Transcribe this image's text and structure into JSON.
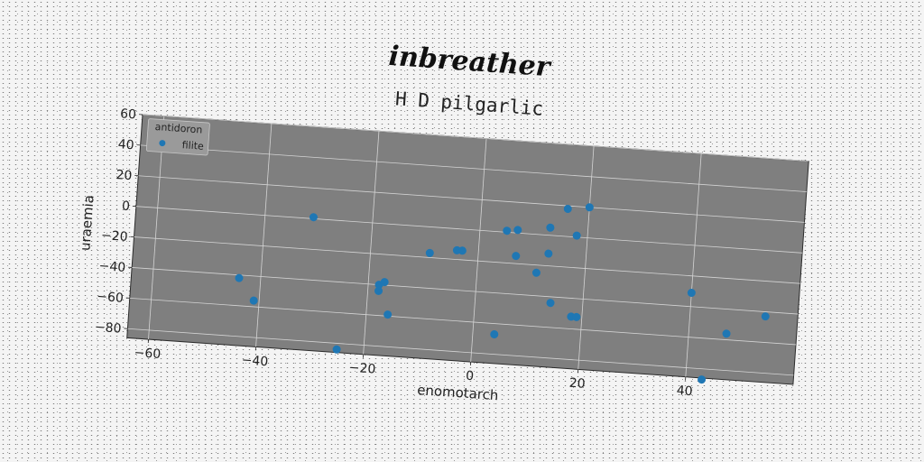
{
  "suptitle": "inbreather",
  "chart_data": {
    "type": "scatter",
    "title": "H D pilgarlic",
    "xlabel": "enomotarch",
    "ylabel": "uraemia",
    "xlim": [
      -64,
      60
    ],
    "ylim": [
      -86,
      60
    ],
    "xticks": [
      -60,
      -40,
      -20,
      0,
      20,
      40
    ],
    "yticks": [
      -80,
      -60,
      -40,
      -20,
      0,
      20,
      40,
      60
    ],
    "xtick_labels": [
      "−60",
      "−40",
      "−20",
      "0",
      "20",
      "40"
    ],
    "ytick_labels": [
      "−80",
      "−60",
      "−40",
      "−20",
      "0",
      "20",
      "40",
      "60"
    ],
    "grid": true,
    "legend": {
      "title": "antidoron",
      "placement": "top-left"
    },
    "series": [
      {
        "name": "filite",
        "color": "#1f77b4",
        "points": [
          {
            "x": -44,
            "y": -42
          },
          {
            "x": -41,
            "y": -56
          },
          {
            "x": -31,
            "y": 1
          },
          {
            "x": -25,
            "y": -84
          },
          {
            "x": -18,
            "y": -44
          },
          {
            "x": -18,
            "y": -40
          },
          {
            "x": -17,
            "y": -38
          },
          {
            "x": -16,
            "y": -59
          },
          {
            "x": -9,
            "y": -17
          },
          {
            "x": -4,
            "y": -14
          },
          {
            "x": -3,
            "y": -14
          },
          {
            "x": 4,
            "y": -67
          },
          {
            "x": 5,
            "y": 1
          },
          {
            "x": 7,
            "y": 2
          },
          {
            "x": 7,
            "y": -15
          },
          {
            "x": 11,
            "y": -25
          },
          {
            "x": 13,
            "y": -12
          },
          {
            "x": 13,
            "y": 5
          },
          {
            "x": 14,
            "y": -44
          },
          {
            "x": 16,
            "y": 18
          },
          {
            "x": 18,
            "y": -52
          },
          {
            "x": 19,
            "y": -52
          },
          {
            "x": 18,
            "y": 1
          },
          {
            "x": 20,
            "y": 20
          },
          {
            "x": 40,
            "y": -31
          },
          {
            "x": 43,
            "y": -87
          },
          {
            "x": 47,
            "y": -56
          },
          {
            "x": 54,
            "y": -43
          }
        ]
      }
    ]
  }
}
